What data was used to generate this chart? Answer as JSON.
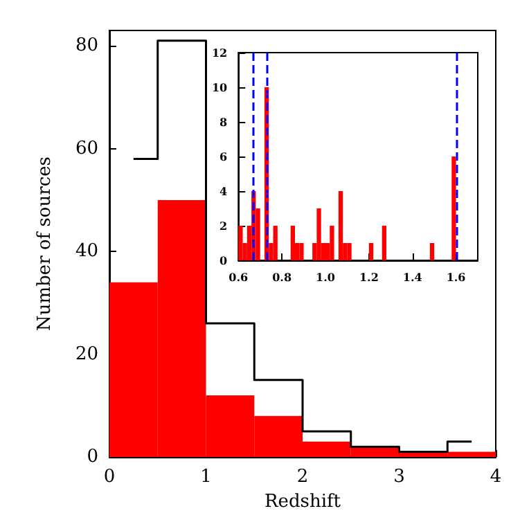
{
  "chart_data": [
    {
      "type": "histogram",
      "xlabel": "Redshift",
      "ylabel": "Number of sources",
      "bins": [
        0,
        0.5,
        1,
        1.5,
        2,
        2.5,
        3,
        3.5,
        4
      ],
      "series": [
        {
          "color": "#ff0000",
          "values": [
            34,
            50,
            12,
            8,
            3,
            2,
            1,
            1
          ]
        },
        {
          "type": "step",
          "color": "#000000",
          "x": [
            0.25,
            0.75,
            1.25,
            1.75,
            2.25,
            2.75,
            3.25,
            3.75
          ],
          "values": [
            58,
            81,
            26,
            15,
            5,
            2,
            1,
            3
          ]
        }
      ],
      "xlim": [
        0,
        4
      ],
      "xticks": [
        0,
        1,
        2,
        3,
        4
      ],
      "ylim": [
        0,
        83
      ],
      "yticks": [
        0,
        20,
        40,
        60,
        80
      ]
    },
    {
      "type": "histogram",
      "bins": [
        0.6,
        0.62,
        0.64,
        0.66,
        0.68,
        0.7,
        0.72,
        0.74,
        0.76,
        0.78,
        0.8,
        0.82,
        0.84,
        0.86,
        0.88,
        0.9,
        0.92,
        0.94,
        0.96,
        0.98,
        1,
        1.02,
        1.04,
        1.06,
        1.08,
        1.1,
        1.12,
        1.14,
        1.16,
        1.18,
        1.2,
        1.22,
        1.24,
        1.26,
        1.28,
        1.3,
        1.32,
        1.34,
        1.36,
        1.38,
        1.4,
        1.42,
        1.44,
        1.46,
        1.48,
        1.5,
        1.52,
        1.54,
        1.56,
        1.58,
        1.6
      ],
      "values": [
        2,
        1,
        2,
        4,
        3,
        0,
        10,
        1,
        2,
        0,
        0,
        0,
        2,
        1,
        1,
        0,
        0,
        1,
        3,
        1,
        1,
        2,
        0,
        4,
        1,
        1,
        0,
        0,
        0,
        0,
        1,
        0,
        0,
        2,
        0,
        0,
        0,
        0,
        0,
        0,
        0,
        0,
        0,
        0,
        1,
        0,
        0,
        0,
        0,
        6
      ],
      "color": "#ff0000",
      "xlim": [
        0.6,
        1.7
      ],
      "xticks": [
        0.6,
        0.8,
        {
          "value": 1,
          "label": "1.0"
        },
        1.2,
        1.4,
        1.6
      ],
      "ylim": [
        0,
        12
      ],
      "yticks": [
        0,
        2,
        4,
        6,
        8,
        10,
        12
      ],
      "ref_lines": [
        {
          "axis": "x",
          "value": 0.67,
          "color": "#0000ff",
          "line_style": "dashed"
        },
        {
          "axis": "x",
          "value": 0.73,
          "color": "#0000ff",
          "line_style": "dashed"
        },
        {
          "axis": "x",
          "value": 1.6,
          "color": "#0000ff",
          "line_style": "dashed"
        }
      ]
    }
  ]
}
